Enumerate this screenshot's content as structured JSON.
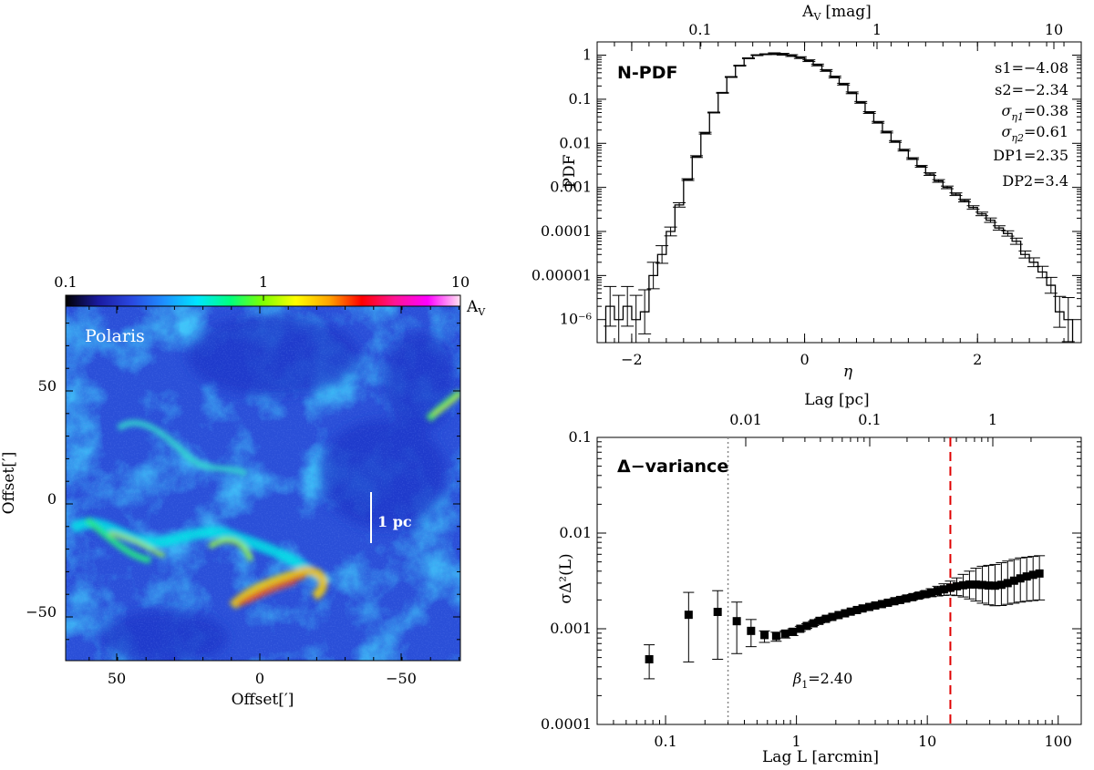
{
  "map": {
    "region_name": "Polaris",
    "scale_bar_label": "1 pc",
    "colorbar_ticks": [
      "0.1",
      "1",
      "10"
    ],
    "colorbar_unit": "A",
    "colorbar_unit_sub": "V",
    "x_ticks": [
      "50",
      "0",
      "−50"
    ],
    "y_ticks": [
      "50",
      "0",
      "−50"
    ],
    "xlabel": "Offset[′]",
    "ylabel": "Offset[′]",
    "colors": [
      "#000000",
      "#1a1aa0",
      "#2a48e0",
      "#1e90ff",
      "#00e5ff",
      "#00ff7f",
      "#7fff00",
      "#ffff00",
      "#ffa500",
      "#ff0000",
      "#ff1493",
      "#ff00ff",
      "#ffe4f0"
    ]
  },
  "chart_data": [
    {
      "type": "line",
      "title": "N-PDF",
      "xlabel": "η",
      "ylabel": "PDF",
      "top_axis_label": "A",
      "top_axis_label_sub": "V",
      "top_axis_unit": "[mag]",
      "top_ticks": [
        "0.1",
        "1",
        "10"
      ],
      "xlim": [
        -2.4,
        3.2
      ],
      "ylim": [
        3e-07,
        2
      ],
      "y_scale": "log",
      "x_ticks": [
        "−2",
        "0",
        "2"
      ],
      "y_ticks": [
        "1",
        "0.1",
        "0.01",
        "0.001",
        "0.0001",
        "0.00001",
        "10⁻⁶"
      ],
      "stats": {
        "s1": "s1=−4.08",
        "s2": "s2=−2.34",
        "sigma1_value": "=0.38",
        "sigma2_value": "=0.61",
        "dp1": "DP1=2.35",
        "dp2": "DP2=3.4"
      },
      "bin_width": 0.1,
      "x": [
        -2.25,
        -2.15,
        -2.05,
        -1.95,
        -1.85,
        -1.75,
        -1.65,
        -1.55,
        -1.45,
        -1.35,
        -1.25,
        -1.15,
        -1.05,
        -0.95,
        -0.85,
        -0.75,
        -0.65,
        -0.55,
        -0.45,
        -0.35,
        -0.25,
        -0.15,
        -0.05,
        0.05,
        0.15,
        0.25,
        0.35,
        0.45,
        0.55,
        0.65,
        0.75,
        0.85,
        0.95,
        1.05,
        1.15,
        1.25,
        1.35,
        1.45,
        1.55,
        1.65,
        1.75,
        1.85,
        1.95,
        2.05,
        2.15,
        2.25,
        2.35,
        2.45,
        2.55,
        2.65,
        2.75,
        2.85,
        2.95,
        3.05
      ],
      "values": [
        2e-06,
        1e-06,
        2e-06,
        1e-06,
        1.5e-06,
        1e-05,
        3e-05,
        0.0001,
        0.0004,
        0.0015,
        0.005,
        0.017,
        0.05,
        0.14,
        0.32,
        0.58,
        0.85,
        1.0,
        1.05,
        1.08,
        1.05,
        0.98,
        0.88,
        0.75,
        0.6,
        0.45,
        0.32,
        0.22,
        0.14,
        0.085,
        0.05,
        0.03,
        0.018,
        0.011,
        0.007,
        0.0045,
        0.003,
        0.002,
        0.0014,
        0.001,
        0.0007,
        0.0005,
        0.00035,
        0.00025,
        0.00018,
        0.00012,
        9e-05,
        6e-05,
        3e-05,
        2e-05,
        1.2e-05,
        6e-06,
        1.5e-06,
        1e-06
      ],
      "errors_dex": [
        0.45,
        0.55,
        0.45,
        0.55,
        0.5,
        0.3,
        0.2,
        0.1,
        0.05,
        0.02,
        0.02,
        0.02,
        0.01,
        0.01,
        0.01,
        0.01,
        0.01,
        0.01,
        0.01,
        0.02,
        0.02,
        0.02,
        0.02,
        0.02,
        0.02,
        0.02,
        0.02,
        0.02,
        0.02,
        0.02,
        0.02,
        0.02,
        0.02,
        0.02,
        0.02,
        0.02,
        0.02,
        0.03,
        0.03,
        0.03,
        0.03,
        0.03,
        0.04,
        0.04,
        0.05,
        0.05,
        0.06,
        0.07,
        0.08,
        0.1,
        0.13,
        0.18,
        0.35,
        0.5
      ]
    },
    {
      "type": "scatter",
      "title": "Δ−variance",
      "xlabel": "Lag L [arcmin]",
      "ylabel": "σΔ²(L)",
      "top_axis_label": "Lag [pc]",
      "top_ticks": [
        "0.01",
        "0.1",
        "1"
      ],
      "x_scale": "log",
      "y_scale": "log",
      "xlim": [
        0.03,
        150
      ],
      "ylim": [
        0.0001,
        0.1
      ],
      "x_ticks": [
        "0.1",
        "1",
        "10",
        "100"
      ],
      "y_ticks": [
        "0.1",
        "0.01",
        "0.001",
        "0.0001"
      ],
      "annotation": "=2.40",
      "vline_dotted": 0.3,
      "vline_dashed": 15,
      "x": [
        0.075,
        0.15,
        0.25,
        0.35,
        0.45,
        0.57,
        0.7,
        0.82,
        0.94,
        1.07,
        1.2,
        1.35,
        1.5,
        1.68,
        1.88,
        2.1,
        2.35,
        2.6,
        2.9,
        3.2,
        3.6,
        4.0,
        4.5,
        5.0,
        5.6,
        6.2,
        6.9,
        7.7,
        8.6,
        9.6,
        10.7,
        12.0,
        13.4,
        15.0,
        16.8,
        18.8,
        21.0,
        23.5,
        26.3,
        29.4,
        32.9,
        36.8,
        41.1,
        46.0,
        51.4,
        57.5,
        64.3,
        71.9
      ],
      "values": [
        0.00048,
        0.0014,
        0.0015,
        0.0012,
        0.00095,
        0.00086,
        0.00084,
        0.00089,
        0.00093,
        0.001,
        0.00107,
        0.00114,
        0.00121,
        0.00127,
        0.00133,
        0.00139,
        0.00145,
        0.00151,
        0.00157,
        0.00163,
        0.00169,
        0.00175,
        0.00181,
        0.00187,
        0.00194,
        0.002,
        0.00207,
        0.00214,
        0.00222,
        0.0023,
        0.00239,
        0.00248,
        0.00258,
        0.00268,
        0.00278,
        0.00285,
        0.0029,
        0.0029,
        0.00287,
        0.00283,
        0.00282,
        0.00288,
        0.003,
        0.00318,
        0.00336,
        0.00352,
        0.00366,
        0.00378
      ],
      "err_low": [
        0.0003,
        0.00045,
        0.00048,
        0.00055,
        0.00065,
        0.00072,
        0.00074,
        0.0008,
        0.00085,
        0.00094,
        0.00101,
        0.00108,
        0.00115,
        0.00121,
        0.00127,
        0.00133,
        0.00139,
        0.00145,
        0.00151,
        0.00156,
        0.00162,
        0.00167,
        0.00173,
        0.00178,
        0.00184,
        0.0019,
        0.00196,
        0.00201,
        0.00207,
        0.00212,
        0.00216,
        0.0022,
        0.00223,
        0.00225,
        0.00222,
        0.00215,
        0.00205,
        0.00195,
        0.00185,
        0.00178,
        0.00174,
        0.00175,
        0.0018,
        0.00185,
        0.0019,
        0.00194,
        0.00197,
        0.002
      ],
      "err_high": [
        0.00068,
        0.0024,
        0.0025,
        0.0019,
        0.00125,
        0.00095,
        0.00092,
        0.00095,
        0.001,
        0.00106,
        0.00113,
        0.0012,
        0.00127,
        0.00133,
        0.00139,
        0.00145,
        0.00151,
        0.00157,
        0.00164,
        0.0017,
        0.00177,
        0.00184,
        0.0019,
        0.00197,
        0.00205,
        0.00212,
        0.0022,
        0.00228,
        0.00238,
        0.00249,
        0.00262,
        0.00278,
        0.00295,
        0.00315,
        0.0034,
        0.0037,
        0.004,
        0.0043,
        0.0045,
        0.0046,
        0.0047,
        0.0049,
        0.0051,
        0.0053,
        0.0055,
        0.0056,
        0.0057,
        0.0058
      ]
    }
  ]
}
